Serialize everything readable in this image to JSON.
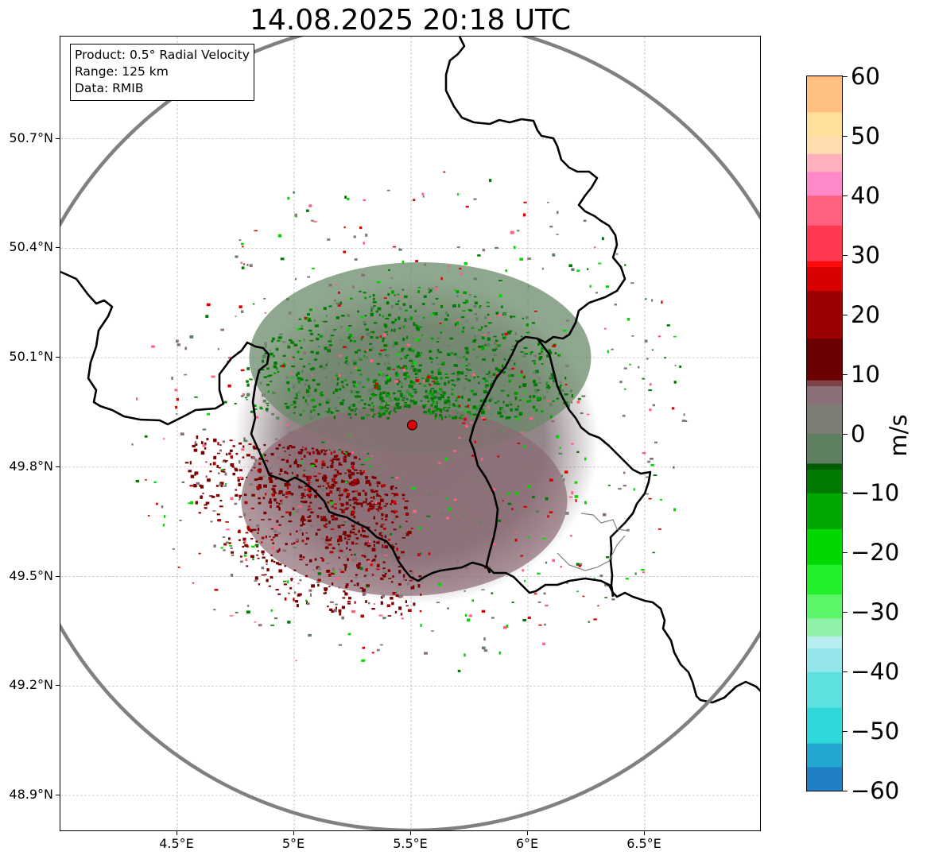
{
  "title": "14.08.2025 20:18 UTC",
  "info_box": {
    "product": "Product: 0.5° Radial Velocity",
    "range": "Range: 125 km",
    "data": "Data: RMIB"
  },
  "map": {
    "lon_range": [
      4.0,
      7.0
    ],
    "lat_range": [
      48.8,
      50.98
    ],
    "lat_ticks": [
      {
        "value": 50.7,
        "label": "50.7°N"
      },
      {
        "value": 50.4,
        "label": "50.4°N"
      },
      {
        "value": 50.1,
        "label": "50.1°N"
      },
      {
        "value": 49.8,
        "label": "49.8°N"
      },
      {
        "value": 49.5,
        "label": "49.5°N"
      },
      {
        "value": 49.2,
        "label": "49.2°N"
      },
      {
        "value": 48.9,
        "label": "48.9°N"
      }
    ],
    "lon_ticks": [
      {
        "value": 4.5,
        "label": "4.5°E"
      },
      {
        "value": 5.0,
        "label": "5°E"
      },
      {
        "value": 5.5,
        "label": "5.5°E"
      },
      {
        "value": 6.0,
        "label": "6°E"
      },
      {
        "value": 6.5,
        "label": "6.5°E"
      }
    ],
    "radar_site": {
      "lon": 5.505,
      "lat": 49.915,
      "color": "#e00000"
    },
    "range_ring_color": "#808080",
    "border_color": "#000000",
    "grid": true
  },
  "colorbar": {
    "unit": "m/s",
    "min": -60,
    "max": 60,
    "tick_labels": [
      "60",
      "50",
      "40",
      "30",
      "20",
      "10",
      "0",
      "−10",
      "−20",
      "−30",
      "−40",
      "−50",
      "−60"
    ],
    "tick_values": [
      60,
      50,
      40,
      30,
      20,
      10,
      0,
      -10,
      -20,
      -30,
      -40,
      -50,
      -60
    ],
    "color_stops": [
      {
        "value": -60,
        "color": "#1f7fc4"
      },
      {
        "value": -56,
        "color": "#22a8d0"
      },
      {
        "value": -52,
        "color": "#2fd8d8"
      },
      {
        "value": -46,
        "color": "#5ee0e0"
      },
      {
        "value": -40,
        "color": "#95e6ea"
      },
      {
        "value": -36,
        "color": "#b8eef0"
      },
      {
        "value": -34,
        "color": "#8ff0a8"
      },
      {
        "value": -31,
        "color": "#5cf56a"
      },
      {
        "value": -27,
        "color": "#22f02c"
      },
      {
        "value": -22,
        "color": "#00d800"
      },
      {
        "value": -16,
        "color": "#00a800"
      },
      {
        "value": -10,
        "color": "#007a00"
      },
      {
        "value": -6,
        "color": "#005c00"
      },
      {
        "value": -5,
        "color": "#5f8060"
      },
      {
        "value": 0,
        "color": "#7e7d76"
      },
      {
        "value": 5,
        "color": "#8b6f77"
      },
      {
        "value": 8,
        "color": "#7e4248"
      },
      {
        "value": 9,
        "color": "#6a0000"
      },
      {
        "value": 16,
        "color": "#9a0000"
      },
      {
        "value": 24,
        "color": "#d80000"
      },
      {
        "value": 28,
        "color": "#ff0a0a"
      },
      {
        "value": 29,
        "color": "#ff3a50"
      },
      {
        "value": 35,
        "color": "#ff6080"
      },
      {
        "value": 40,
        "color": "#ff88c8"
      },
      {
        "value": 44,
        "color": "#ffb0bc"
      },
      {
        "value": 47,
        "color": "#ffdcb0"
      },
      {
        "value": 50,
        "color": "#ffe09a"
      },
      {
        "value": 54,
        "color": "#ffc080"
      },
      {
        "value": 60,
        "color": "#ff9a58"
      }
    ]
  }
}
